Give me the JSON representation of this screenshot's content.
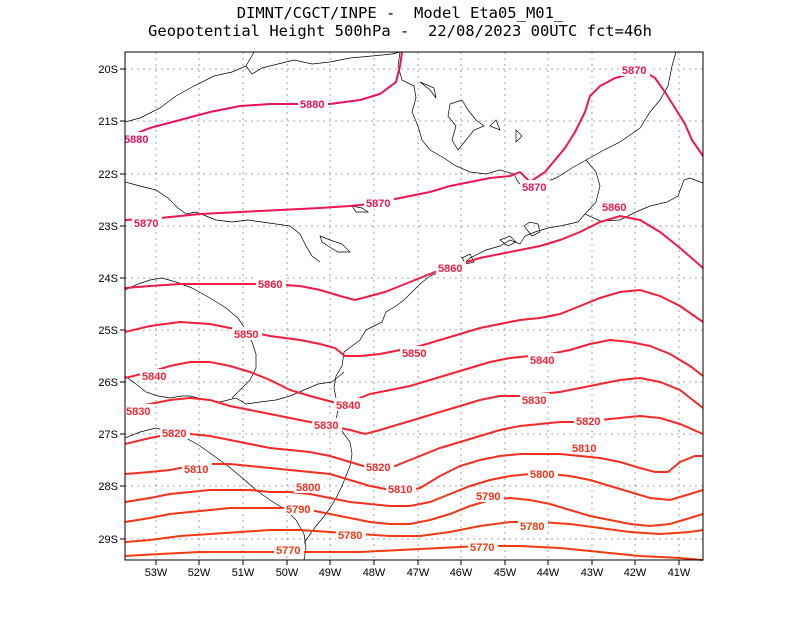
{
  "title": {
    "line1": "DIMNT/CGCT/INPE -  Model Eta05_M01_",
    "line2": "Geopotential Height 500hPa -  22/08/2023 00UTC fct=46h"
  },
  "axes": {
    "x_ticks": [
      "53W",
      "52W",
      "51W",
      "50W",
      "49W",
      "48W",
      "47W",
      "46W",
      "45W",
      "44W",
      "43W",
      "42W",
      "41W"
    ],
    "y_ticks": [
      "20S",
      "21S",
      "22S",
      "23S",
      "24S",
      "25S",
      "26S",
      "27S",
      "28S",
      "29S"
    ]
  },
  "contour_levels": [
    "5770",
    "5780",
    "5790",
    "5800",
    "5810",
    "5820",
    "5830",
    "5840",
    "5850",
    "5860",
    "5870",
    "5880"
  ],
  "colors": {
    "c5770": "#f03c10",
    "c5780": "#f23a14",
    "c5790": "#f33618",
    "c5800": "#f4321c",
    "c5810": "#f52e22",
    "c5820": "#f62a28",
    "c5830": "#f6262e",
    "c5840": "#f52235",
    "c5850": "#f41e3c",
    "c5860": "#f21a46",
    "c5870": "#ee1652",
    "c5880": "#e8125e",
    "coast": "#000000",
    "grid": "#888888"
  }
}
